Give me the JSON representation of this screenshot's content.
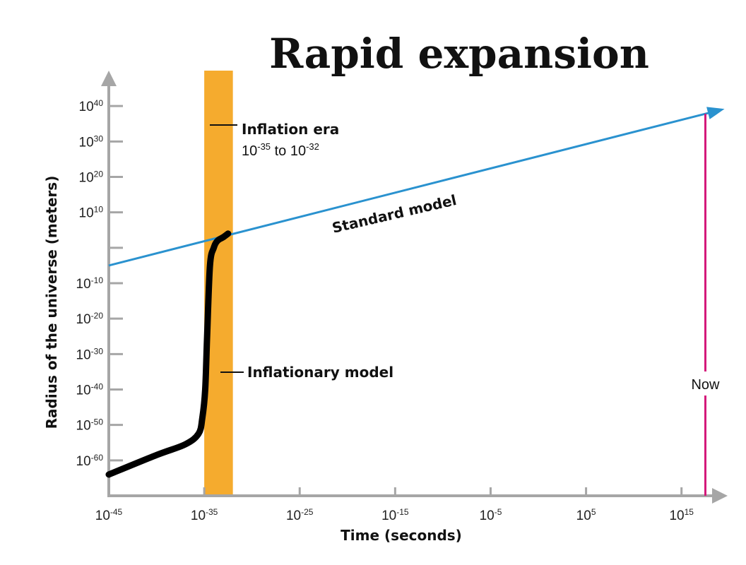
{
  "chart_data": {
    "type": "line",
    "title": "Rapid expansion",
    "xlabel": "Time (seconds)",
    "ylabel": "Radius of the universe (meters)",
    "x_scale": "log",
    "y_scale": "log",
    "xlim_exponent": [
      -45,
      18.5
    ],
    "ylim_exponent": [
      -70,
      50
    ],
    "x_ticks": [
      {
        "base": "10",
        "exp": "-45",
        "value": -45
      },
      {
        "base": "10",
        "exp": "-35",
        "value": -35
      },
      {
        "base": "10",
        "exp": "-25",
        "value": -25
      },
      {
        "base": "10",
        "exp": "-15",
        "value": -15
      },
      {
        "base": "10",
        "exp": "-5",
        "value": -5
      },
      {
        "base": "10",
        "exp": "5",
        "value": 5
      },
      {
        "base": "10",
        "exp": "15",
        "value": 15
      }
    ],
    "y_ticks": [
      {
        "base": "10",
        "exp": "40",
        "value": 40
      },
      {
        "base": "10",
        "exp": "30",
        "value": 30
      },
      {
        "base": "10",
        "exp": "20",
        "value": 20
      },
      {
        "base": "10",
        "exp": "10",
        "value": 10
      },
      {
        "base": "",
        "exp": "",
        "value": 0
      },
      {
        "base": "10",
        "exp": "-10",
        "value": -10
      },
      {
        "base": "10",
        "exp": "-20",
        "value": -20
      },
      {
        "base": "10",
        "exp": "-30",
        "value": -30
      },
      {
        "base": "10",
        "exp": "-40",
        "value": -40
      },
      {
        "base": "10",
        "exp": "-50",
        "value": -50
      },
      {
        "base": "10",
        "exp": "-60",
        "value": -60
      }
    ],
    "series": [
      {
        "name": "Standard model",
        "color": "#2a92cf",
        "x": [
          -45,
          18.5
        ],
        "y": [
          -5,
          38.5
        ]
      },
      {
        "name": "Inflationary model",
        "color": "#000000",
        "x": [
          -45,
          -40,
          -37,
          -35.6,
          -35.2,
          -34.9,
          -34.7,
          -34.4,
          -34.0,
          -33.6,
          -33.0,
          -32.5
        ],
        "y": [
          -64,
          -58.5,
          -55.5,
          -52.5,
          -48,
          -40,
          -25,
          -5,
          0,
          2,
          3,
          4
        ]
      }
    ],
    "inflation_era": {
      "label": "Inflation era",
      "range_text_pre": "10",
      "range_exp_start": "-35",
      "range_text_mid": " to 10",
      "range_exp_end": "-32",
      "x_start": -35,
      "x_end": -32,
      "color": "#f5ab2e"
    },
    "now_marker": {
      "label": "Now",
      "x": 17.5,
      "color": "#d4187a"
    },
    "grid": false
  }
}
